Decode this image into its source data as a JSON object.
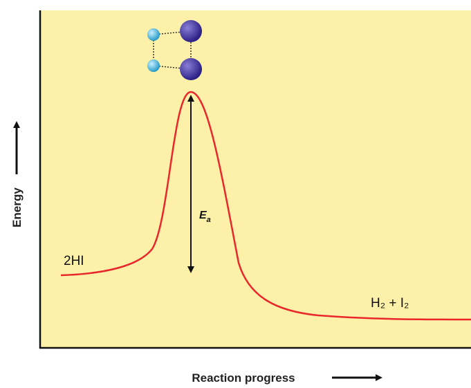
{
  "diagram": {
    "y_axis_label": "Energy",
    "x_axis_label": "Reaction progress",
    "reactant_label": "2HI",
    "product_label": "H₂ + I₂",
    "activation_energy": {
      "symbol": "E",
      "subscript": "a"
    }
  }
}
